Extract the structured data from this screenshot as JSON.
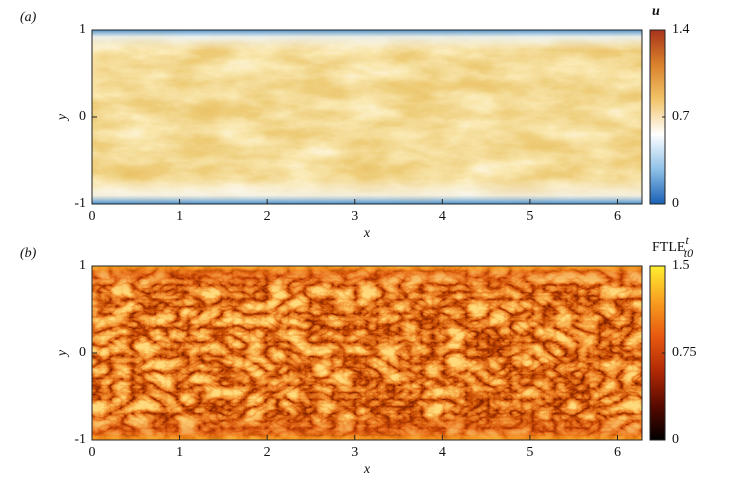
{
  "chart_data": [
    {
      "type": "heatmap",
      "panel_label": "(a)",
      "xlabel": "x",
      "ylabel": "y",
      "xlim": [
        0,
        6.28
      ],
      "xticks": [
        0,
        1,
        2,
        3,
        4,
        5,
        6
      ],
      "ylim": [
        -1,
        1
      ],
      "yticks": [
        -1,
        0,
        1
      ],
      "colorbar": {
        "label": "u",
        "lim": [
          0,
          1.4
        ],
        "ticks": [
          0,
          0.7,
          1.4
        ],
        "colors": [
          "#1a5fb4",
          "#8fc1e8",
          "#ffffff",
          "#f2c46a",
          "#d9822b",
          "#a8331b"
        ]
      }
    },
    {
      "type": "heatmap",
      "panel_label": "(b)",
      "xlabel": "x",
      "ylabel": "y",
      "xlim": [
        0,
        6.28
      ],
      "xticks": [
        0,
        1,
        2,
        3,
        4,
        5,
        6
      ],
      "ylim": [
        -1,
        1
      ],
      "yticks": [
        -1,
        0,
        1
      ],
      "colorbar": {
        "label": "FTLE",
        "label_sup": "t",
        "label_sub": "t0",
        "lim": [
          0,
          1.5
        ],
        "ticks": [
          0,
          0.75,
          1.5
        ],
        "colors": [
          "#000000",
          "#5a0a00",
          "#b22a05",
          "#e85a10",
          "#f8a020",
          "#ffee30"
        ]
      }
    }
  ]
}
